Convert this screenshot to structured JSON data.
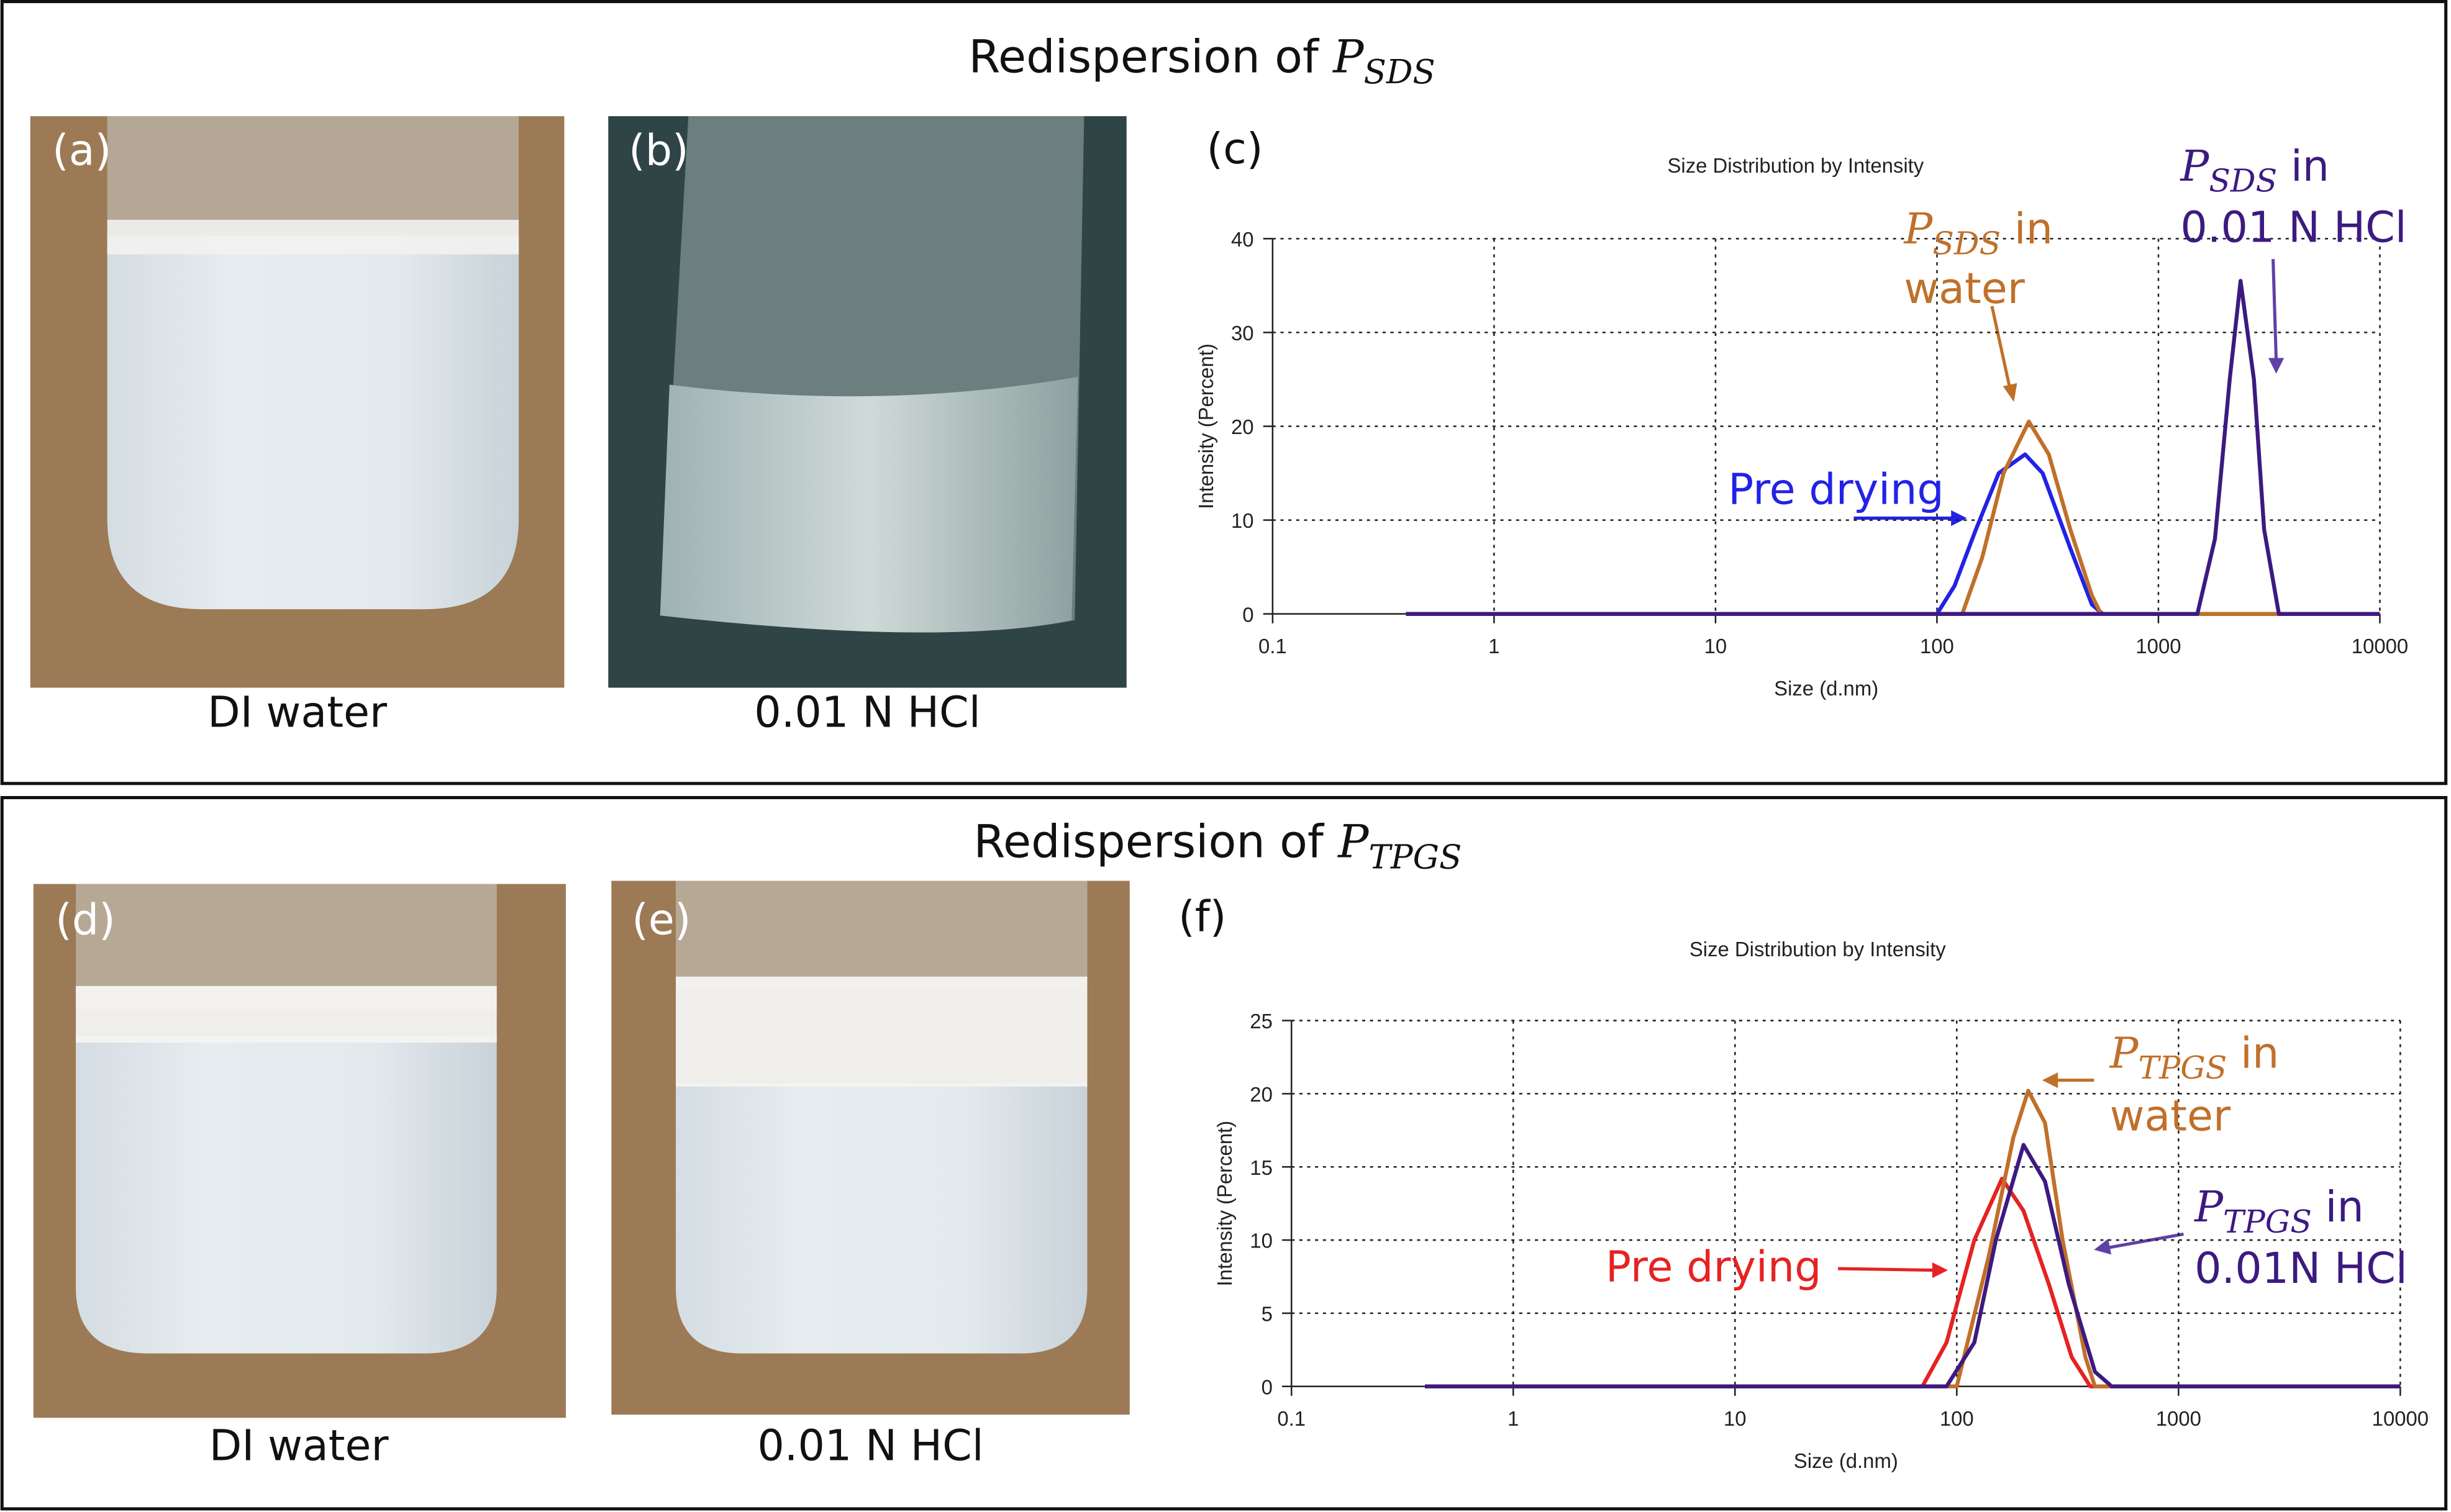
{
  "panels": [
    {
      "letter": "(a)",
      "caption": "DI water"
    },
    {
      "letter": "(b)",
      "caption": "0.01 N HCl"
    },
    {
      "letter": "(d)",
      "caption": "DI water"
    },
    {
      "letter": "(e)",
      "caption": "0.01 N HCl"
    }
  ],
  "sections": [
    {
      "text": "Redispersion of",
      "symbol": "P",
      "subscript": "SDS"
    },
    {
      "text": "Redispersion of",
      "symbol": "P",
      "subscript": "TPGS"
    }
  ],
  "chart_data": [
    {
      "type": "line",
      "letter": "(c)",
      "title": "Size Distribution by Intensity",
      "x_label": "Size (d.nm)",
      "y_label": "Intensity (Percent)",
      "xscale": "log",
      "grid": true,
      "xlim": [
        0.1,
        10000
      ],
      "xticks": [
        0.1,
        1,
        10,
        100,
        1000,
        10000
      ],
      "ylim": [
        0,
        40
      ],
      "yticks": [
        0,
        10,
        20,
        30,
        40
      ],
      "series": [
        {
          "name": "Pre drying",
          "color": "#2222e6",
          "x": [
            0.4,
            100,
            120,
            150,
            190,
            250,
            300,
            400,
            500,
            560,
            10000
          ],
          "values": [
            0,
            0,
            3,
            9,
            15,
            17,
            15,
            7,
            1,
            0,
            0
          ]
        },
        {
          "name_symbol": "P",
          "name_subscript": "SDS",
          "name_lines": [
            "in",
            "water"
          ],
          "color": "#c0702a",
          "x": [
            0.4,
            130,
            160,
            200,
            260,
            320,
            400,
            500,
            550,
            10000
          ],
          "values": [
            0,
            0,
            6,
            15,
            20.5,
            17,
            9,
            2,
            0,
            0
          ]
        },
        {
          "name_symbol": "P",
          "name_subscript": "SDS",
          "name_lines": [
            "in",
            "0.01 N HCl"
          ],
          "color": "#3d1a80",
          "x": [
            0.4,
            1500,
            1800,
            2100,
            2350,
            2700,
            3000,
            3500,
            10000
          ],
          "values": [
            0,
            0,
            8,
            25,
            35.5,
            25,
            9,
            0,
            0
          ]
        }
      ]
    },
    {
      "type": "line",
      "letter": "(f)",
      "title": "Size Distribution by Intensity",
      "x_label": "Size (d.nm)",
      "y_label": "Intensity (Percent)",
      "xscale": "log",
      "grid": true,
      "xlim": [
        0.1,
        10000
      ],
      "xticks": [
        0.1,
        1,
        10,
        100,
        1000,
        10000
      ],
      "ylim": [
        0,
        25
      ],
      "yticks": [
        0,
        5,
        10,
        15,
        20,
        25
      ],
      "series": [
        {
          "name": "Pre drying",
          "color": "#e62222",
          "x": [
            0.4,
            70,
            90,
            120,
            160,
            200,
            260,
            330,
            400,
            10000
          ],
          "values": [
            0,
            0,
            3,
            10,
            14.2,
            12,
            7,
            2,
            0,
            0
          ]
        },
        {
          "name_symbol": "P",
          "name_subscript": "TPGS",
          "name_lines": [
            "in",
            "water"
          ],
          "color": "#c0702a",
          "x": [
            0.4,
            100,
            140,
            180,
            210,
            250,
            300,
            380,
            420,
            10000
          ],
          "values": [
            0,
            0,
            9,
            17,
            20.2,
            18,
            10,
            2,
            0,
            0
          ]
        },
        {
          "name_symbol": "P",
          "name_subscript": "TPGS",
          "name_lines": [
            "in",
            "0.01N HCl"
          ],
          "color": "#3d1a80",
          "x": [
            0.4,
            90,
            120,
            150,
            200,
            250,
            320,
            420,
            500,
            10000
          ],
          "values": [
            0,
            0,
            3,
            10,
            16.5,
            14,
            7,
            1,
            0,
            0
          ]
        }
      ]
    }
  ]
}
